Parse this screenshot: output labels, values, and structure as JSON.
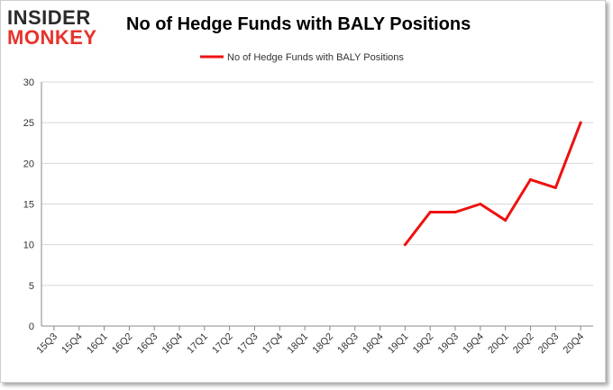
{
  "logo": {
    "line1": "INSIDER",
    "line2": "MONKEY"
  },
  "colors": {
    "series": "#ee1111",
    "grid": "#d9d9d9",
    "axis": "#888888",
    "text": "#333333"
  },
  "chart_data": {
    "type": "line",
    "title": "No of Hedge Funds with BALY Positions",
    "categories": [
      "15Q3",
      "15Q4",
      "16Q1",
      "16Q2",
      "16Q3",
      "16Q4",
      "17Q1",
      "17Q2",
      "17Q3",
      "17Q4",
      "18Q1",
      "18Q2",
      "18Q3",
      "18Q4",
      "19Q1",
      "19Q2",
      "19Q3",
      "19Q4",
      "20Q1",
      "20Q2",
      "20Q3",
      "20Q4"
    ],
    "series": [
      {
        "name": "No of Hedge Funds with BALY Positions",
        "values": [
          null,
          null,
          null,
          null,
          null,
          null,
          null,
          null,
          null,
          null,
          null,
          null,
          null,
          null,
          10,
          14,
          14,
          15,
          13,
          18,
          17,
          25
        ]
      }
    ],
    "yticks": [
      0,
      5,
      10,
      15,
      20,
      25,
      30
    ],
    "ylim": [
      0,
      30
    ],
    "grid": true,
    "legend": "top"
  }
}
